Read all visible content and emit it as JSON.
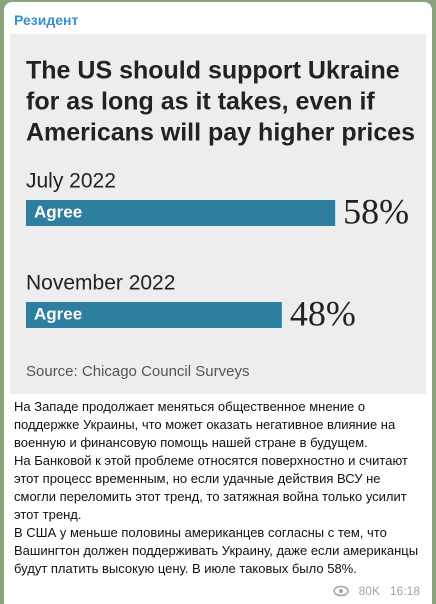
{
  "channel": "Резидент",
  "image": {
    "title": [
      "The US should support Ukraine",
      "for as long as it takes, even if",
      "Americans will pay higher prices"
    ],
    "groups": [
      {
        "label": "July 2022",
        "bar_label": "Agree",
        "value": 58,
        "value_label": "58%"
      },
      {
        "label": "November 2022",
        "bar_label": "Agree",
        "value": 48,
        "value_label": "48%"
      }
    ],
    "source": "Source: Chicago Council Surveys"
  },
  "text": [
    "На Западе продолжает меняться общественное мнение о поддержке Украины, что может оказать негативное влияние на военную и финансовую помощь нашей стране в будущем.",
    "На Банковой к этой проблеме относятся поверхностно и считают этот процесс временным, но если удачные действия ВСУ не смогли переломить этот тренд, то затяжная война только усилит этот тренд.",
    "В США у меньше половины американцев согласны с тем, что Вашингтон должен поддерживать Украину, даже если американцы будут платить высокую цену. В июле таковых было 58%."
  ],
  "views": "80K",
  "time": "16:18"
}
